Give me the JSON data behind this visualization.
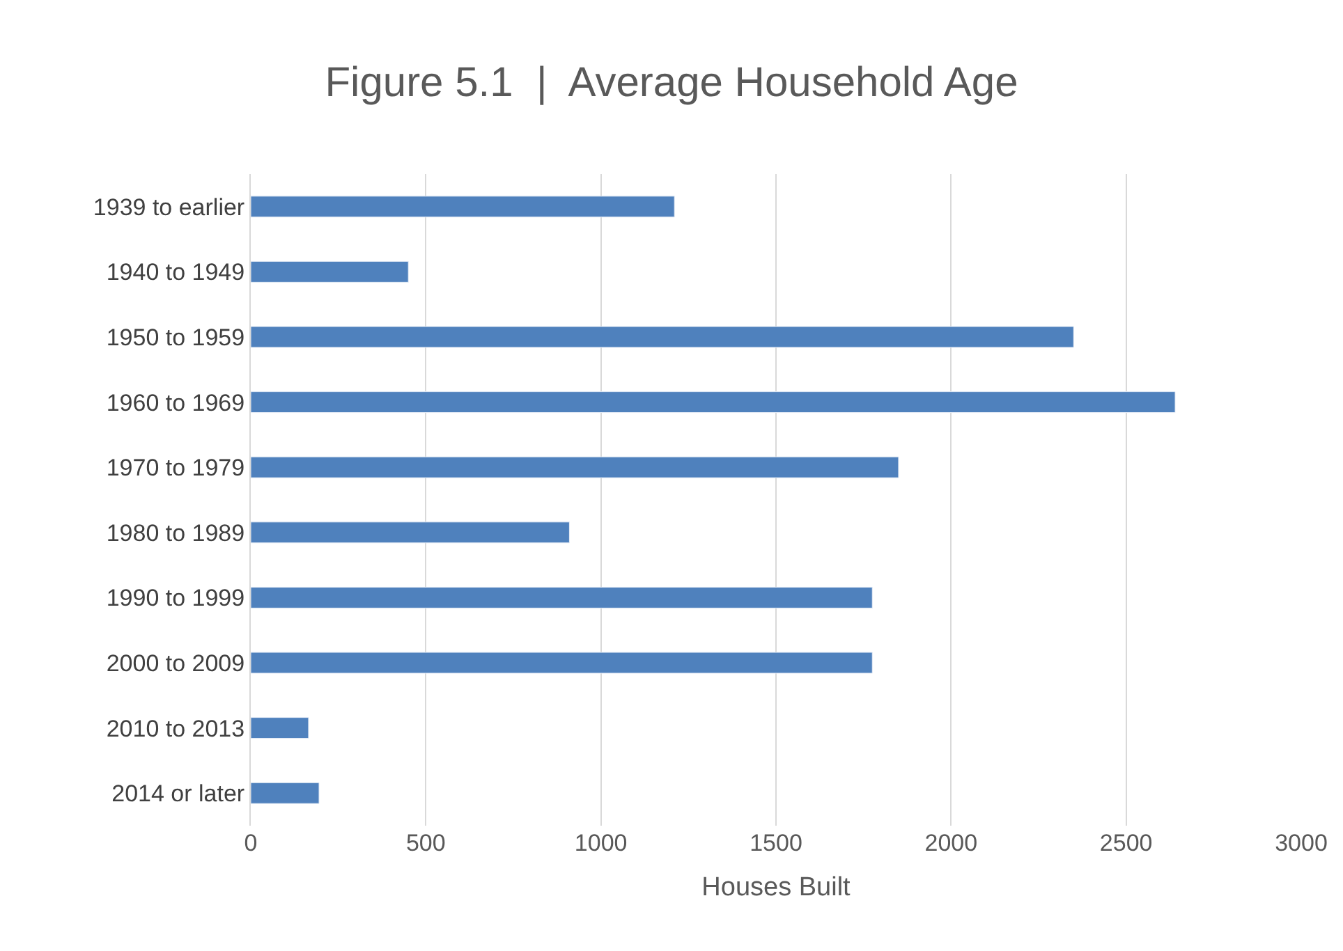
{
  "chart_data": {
    "type": "bar",
    "orientation": "horizontal",
    "title": "Figure 5.1  |  Average Household Age",
    "xlabel": "Houses Built",
    "categories": [
      "1939 to earlier",
      "1940 to 1949",
      "1950 to 1959",
      "1960 to 1969",
      "1970 to 1979",
      "1980 to 1989",
      "1990 to 1999",
      "2000 to 2009",
      "2010 to 2013",
      "2014 or later"
    ],
    "values": [
      1210,
      450,
      2350,
      2640,
      1850,
      910,
      1775,
      1775,
      165,
      195
    ],
    "color": "#4f81bd",
    "xlim": [
      0,
      3000
    ],
    "xticks": [
      0,
      500,
      1000,
      1500,
      2000,
      2500,
      3000
    ],
    "grid": "x"
  }
}
